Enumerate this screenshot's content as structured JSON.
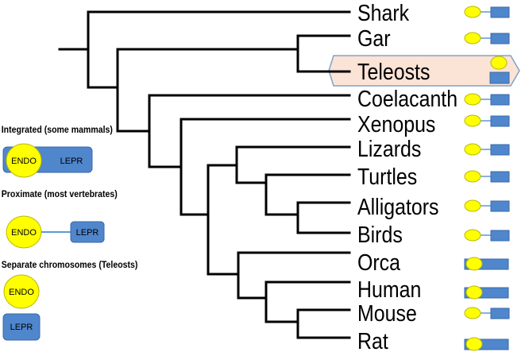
{
  "tree": {
    "taxa": [
      "Shark",
      "Gar",
      "Teleosts",
      "Coelacanth",
      "Xenopus",
      "Lizards",
      "Turtles",
      "Alligators",
      "Birds",
      "Orca",
      "Human",
      "Mouse",
      "Rat"
    ],
    "highlighted_taxon": "Teleosts",
    "gene_arrangement": {
      "Shark": "proximate",
      "Gar": "proximate",
      "Teleosts": "separate",
      "Coelacanth": "proximate",
      "Xenopus": "proximate",
      "Lizards": "proximate",
      "Turtles": "proximate",
      "Alligators": "proximate",
      "Birds": "proximate",
      "Orca": "integrated",
      "Human": "integrated",
      "Mouse": "proximate",
      "Rat": "integrated"
    }
  },
  "legend": {
    "integrated": {
      "title": "Integrated (some mammals)",
      "endo": "ENDO",
      "lepr": "LEPR"
    },
    "proximate": {
      "title": "Proximate (most vertebrates)",
      "endo": "ENDO",
      "lepr": "LEPR"
    },
    "separate": {
      "title": "Separate chromosomes (Teleosts)",
      "endo": "ENDO",
      "lepr": "LEPR"
    }
  },
  "colors": {
    "endo_fill": "#ffff00",
    "endo_stroke": "#b8b800",
    "lepr_fill": "#4f86cc",
    "lepr_stroke": "#3a6aa8",
    "linker": "#5b9bd5",
    "highlight_fill": "#fbe3d6",
    "highlight_stroke": "#7fa3c8",
    "branch": "#000000"
  }
}
